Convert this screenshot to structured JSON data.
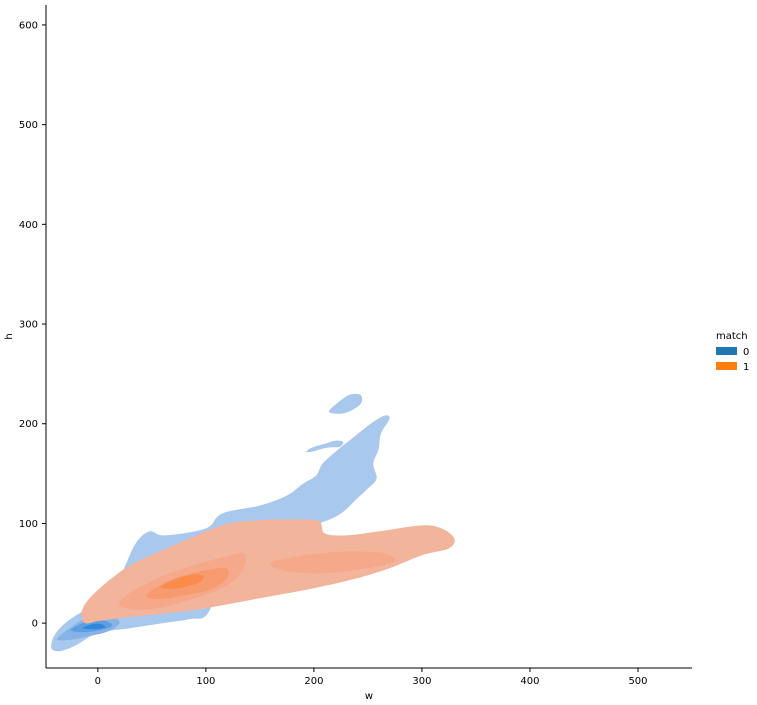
{
  "chart_data": {
    "type": "kde-contour",
    "title": "",
    "xlabel": "w",
    "ylabel": "h",
    "xlim": [
      -48,
      550
    ],
    "ylim": [
      -45,
      620
    ],
    "xticks": [
      0,
      100,
      200,
      300,
      400,
      500
    ],
    "yticks": [
      0,
      100,
      200,
      300,
      400,
      500,
      600
    ],
    "grid": false,
    "legend": {
      "title": "match",
      "placement": "right",
      "entries": [
        {
          "label": "0",
          "color": "#1f77b4"
        },
        {
          "label": "1",
          "color": "#ff7f0e"
        }
      ]
    },
    "series": [
      {
        "label": "0",
        "color": "#1f77b4",
        "levels": [
          {
            "fill": "#a9c8ee",
            "polygons": [
              [
                [
                  -43,
                  -25
                ],
                [
                  -40,
                  -12
                ],
                [
                  -28,
                  2
                ],
                [
                  -5,
                  18
                ],
                [
                  10,
                  30
                ],
                [
                  22,
                  50
                ],
                [
                  35,
                  80
                ],
                [
                  48,
                  92
                ],
                [
                  62,
                  88
                ],
                [
                  100,
                  95
                ],
                [
                  115,
                  110
                ],
                [
                  150,
                  118
                ],
                [
                  175,
                  128
                ],
                [
                  190,
                  140
                ],
                [
                  202,
                  148
                ],
                [
                  208,
                  160
                ],
                [
                  220,
                  172
                ],
                [
                  235,
                  185
                ],
                [
                  250,
                  198
                ],
                [
                  265,
                  208
                ],
                [
                  270,
                  205
                ],
                [
                  262,
                  190
                ],
                [
                  260,
                  175
                ],
                [
                  255,
                  160
                ],
                [
                  258,
                  145
                ],
                [
                  250,
                  135
                ],
                [
                  240,
                  125
                ],
                [
                  225,
                  110
                ],
                [
                  205,
                  100
                ],
                [
                  150,
                  80
                ],
                [
                  120,
                  55
                ],
                [
                  102,
                  10
                ],
                [
                  85,
                  4
                ],
                [
                  60,
                  0
                ],
                [
                  30,
                  -5
                ],
                [
                  0,
                  -10
                ],
                [
                  -20,
                  -22
                ],
                [
                  -35,
                  -28
                ]
              ],
              [
                [
                  214,
                  212
                ],
                [
                  222,
                  221
                ],
                [
                  233,
                  229
                ],
                [
                  243,
                  229
                ],
                [
                  244,
                  221
                ],
                [
                  236,
                  214
                ],
                [
                  225,
                  210
                ]
              ],
              [
                [
                  193,
                  172
                ],
                [
                  198,
                  176
                ],
                [
                  210,
                  180
                ],
                [
                  220,
                  183
                ],
                [
                  227,
                  182
                ],
                [
                  224,
                  177
                ],
                [
                  212,
                  176
                ],
                [
                  198,
                  172
                ]
              ]
            ]
          },
          {
            "fill": "#86b3e6",
            "polygons": [
              [
                [
                  -38,
                  -16
                ],
                [
                  -26,
                  -5
                ],
                [
                  -10,
                  6
                ],
                [
                  0,
                  10
                ],
                [
                  14,
                  7
                ],
                [
                  20,
                  0
                ],
                [
                  10,
                  -8
                ],
                [
                  -8,
                  -13
                ],
                [
                  -28,
                  -17
                ]
              ]
            ]
          },
          {
            "fill": "#5d9ee3",
            "polygons": [
              [
                [
                  -25,
                  -7
                ],
                [
                  -12,
                  1
                ],
                [
                  0,
                  3
                ],
                [
                  10,
                  1
                ],
                [
                  13,
                  -3
                ],
                [
                  2,
                  -7
                ],
                [
                  -12,
                  -9
                ]
              ]
            ]
          },
          {
            "fill": "#2f88de",
            "polygons": [
              [
                [
                  -14,
                  -5
                ],
                [
                  -5,
                  -1
                ],
                [
                  3,
                  -1
                ],
                [
                  7,
                  -4
                ],
                [
                  -2,
                  -6
                ]
              ]
            ]
          }
        ]
      },
      {
        "label": "1",
        "color": "#ff7f0e",
        "levels": [
          {
            "fill": "#f2b59c",
            "polygons": [
              [
                [
                  -15,
                  10
                ],
                [
                  -10,
                  22
                ],
                [
                  5,
                  38
                ],
                [
                  30,
                  58
                ],
                [
                  70,
                  78
                ],
                [
                  115,
                  98
                ],
                [
                  145,
                  103
                ],
                [
                  185,
                  104
                ],
                [
                  205,
                  102
                ],
                [
                  210,
                  90
                ],
                [
                  230,
                  88
                ],
                [
                  260,
                  92
                ],
                [
                  300,
                  98
                ],
                [
                  318,
                  95
                ],
                [
                  330,
                  85
                ],
                [
                  325,
                  75
                ],
                [
                  300,
                  68
                ],
                [
                  270,
                  55
                ],
                [
                  240,
                  45
                ],
                [
                  200,
                  35
                ],
                [
                  150,
                  25
                ],
                [
                  100,
                  15
                ],
                [
                  65,
                  10
                ],
                [
                  20,
                  5
                ],
                [
                  0,
                  2
                ],
                [
                  -12,
                  0
                ]
              ]
            ]
          },
          {
            "fill": "#f5a98a",
            "polygons": [
              [
                [
                  20,
                  22
                ],
                [
                  45,
                  40
                ],
                [
                  80,
                  55
                ],
                [
                  115,
                  66
                ],
                [
                  135,
                  70
                ],
                [
                  135,
                  55
                ],
                [
                  120,
                  38
                ],
                [
                  90,
                  25
                ],
                [
                  55,
                  15
                ],
                [
                  30,
                  14
                ]
              ],
              [
                [
                  160,
                  60
                ],
                [
                  190,
                  68
                ],
                [
                  230,
                  72
                ],
                [
                  265,
                  70
                ],
                [
                  275,
                  62
                ],
                [
                  250,
                  55
                ],
                [
                  210,
                  50
                ],
                [
                  175,
                  52
                ]
              ]
            ]
          },
          {
            "fill": "#f79a6e",
            "polygons": [
              [
                [
                  45,
                  28
                ],
                [
                  65,
                  42
                ],
                [
                  95,
                  52
                ],
                [
                  118,
                  55
                ],
                [
                  120,
                  46
                ],
                [
                  105,
                  34
                ],
                [
                  80,
                  28
                ],
                [
                  58,
                  24
                ]
              ]
            ]
          },
          {
            "fill": "#fa8b4b",
            "polygons": [
              [
                [
                  58,
                  36
                ],
                [
                  72,
                  44
                ],
                [
                  90,
                  49
                ],
                [
                  98,
                  46
                ],
                [
                  92,
                  40
                ],
                [
                  75,
                  35
                ]
              ]
            ]
          }
        ]
      }
    ]
  }
}
